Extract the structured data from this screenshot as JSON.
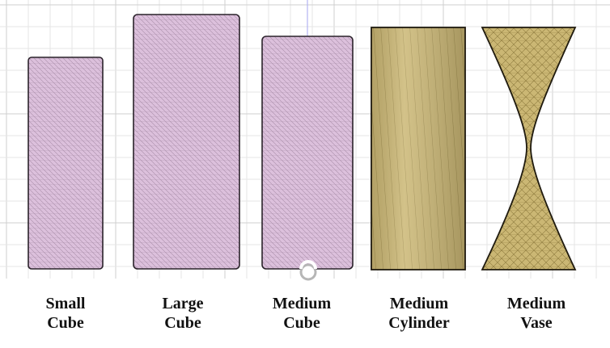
{
  "colors": {
    "background": "#ffffff",
    "grid_minor": "#e6e6e6",
    "grid_major": "#cfcfcf",
    "axis": "#b3b3f2",
    "cube_fill": "#dcc0dc",
    "cube_mesh": "#a98ea9",
    "cube_edge": "#2a222a",
    "gold_fill": "#cbb774",
    "gold_mesh": "#8f7c3e",
    "gold_edge": "#1f1a0e",
    "label_text": "#111111"
  },
  "labels": [
    {
      "line1": "Small",
      "line2": "Cube"
    },
    {
      "line1": "Large",
      "line2": "Cube"
    },
    {
      "line1": "Medium",
      "line2": "Cube"
    },
    {
      "line1": "Medium",
      "line2": "Cylinder"
    },
    {
      "line1": "Medium",
      "line2": "Vase"
    }
  ]
}
